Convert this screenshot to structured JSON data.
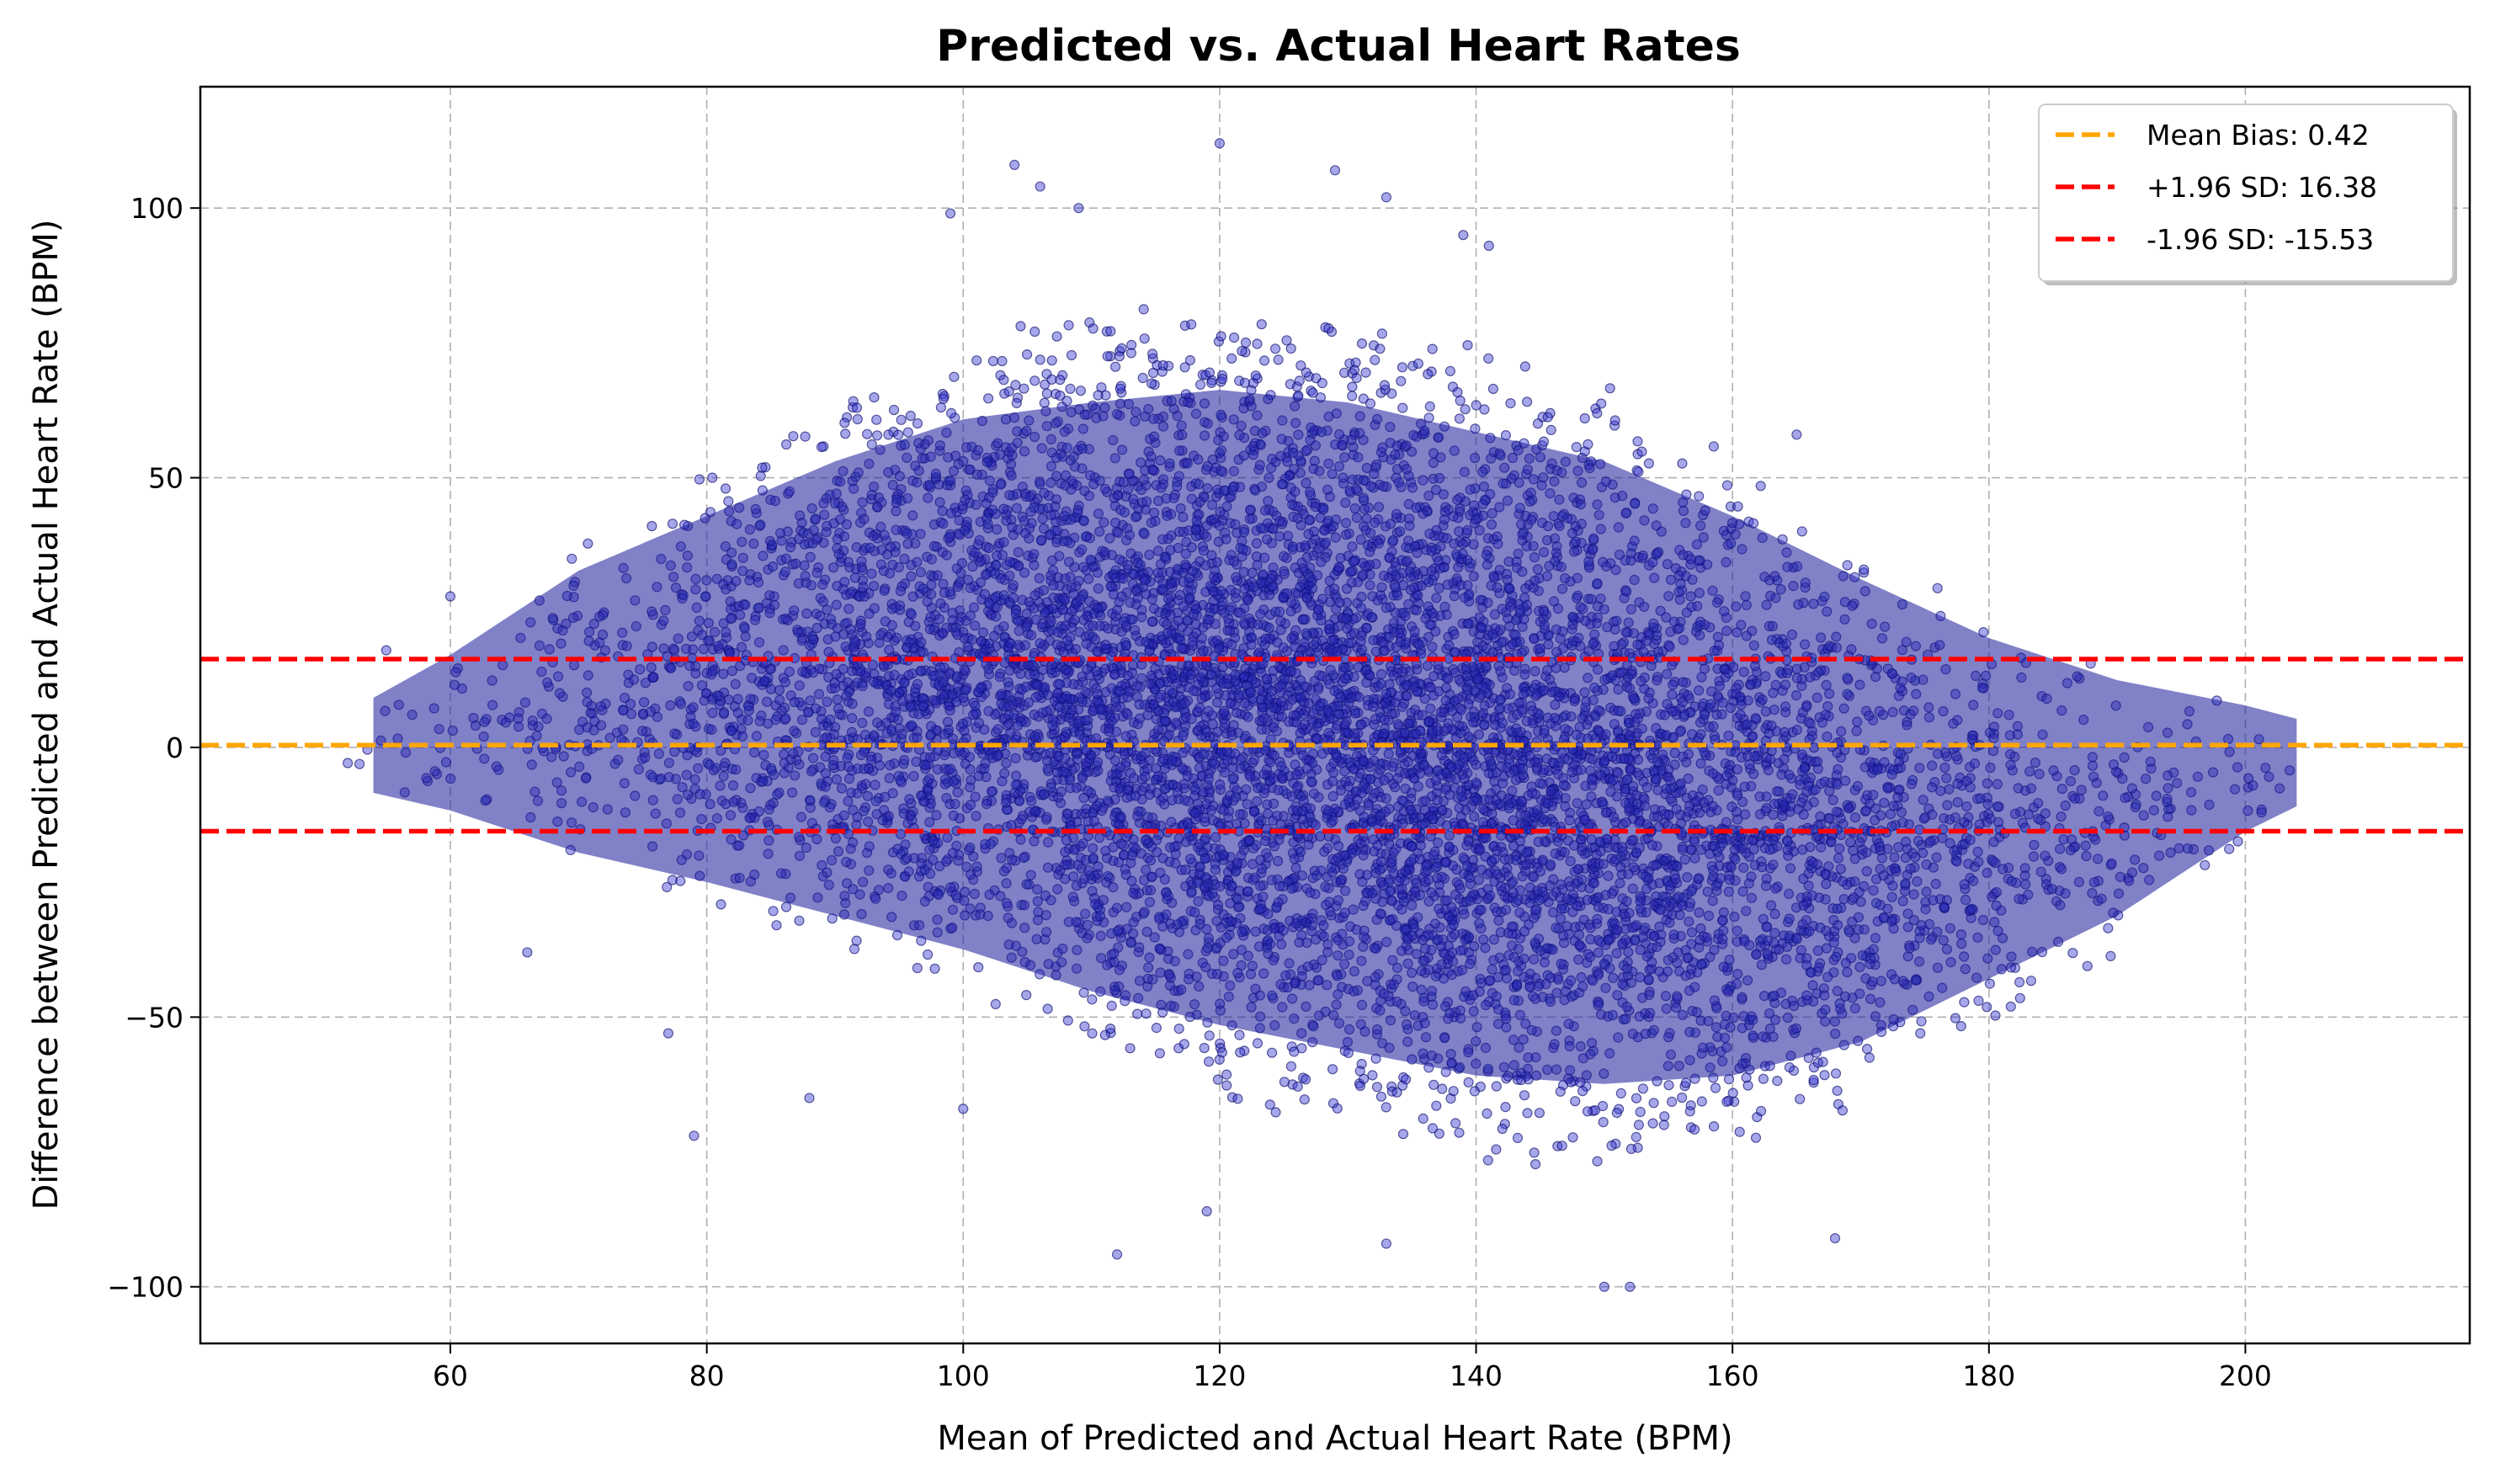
{
  "chart_data": {
    "type": "scatter",
    "title": "Predicted vs. Actual Heart Rates",
    "xlabel": "Mean of Predicted and Actual Heart Rate (BPM)",
    "ylabel": "Difference between Predicted and Actual Heart Rate (BPM)",
    "xlim": [
      40.5,
      217.5
    ],
    "ylim": [
      -110.5,
      122.5
    ],
    "xticks": [
      60,
      80,
      100,
      120,
      140,
      160,
      180,
      200
    ],
    "yticks": [
      100,
      50,
      0,
      -50,
      -100
    ],
    "ytick_labels": [
      "100",
      "50",
      "0",
      "−50",
      "−100"
    ],
    "grid": true,
    "legend_position": "top-right",
    "point_color": "#3a3ad0",
    "point_edge_color": "#000060",
    "point_opacity": 0.45,
    "scatter_distribution": {
      "x_range": [
        48,
        210
      ],
      "envelope": [
        {
          "x": 50,
          "upper": 5,
          "lower": -8
        },
        {
          "x": 60,
          "upper": 22,
          "lower": -15
        },
        {
          "x": 70,
          "upper": 42,
          "lower": -25
        },
        {
          "x": 80,
          "upper": 55,
          "lower": -32
        },
        {
          "x": 90,
          "upper": 68,
          "lower": -40
        },
        {
          "x": 100,
          "upper": 78,
          "lower": -48
        },
        {
          "x": 110,
          "upper": 82,
          "lower": -58
        },
        {
          "x": 120,
          "upper": 85,
          "lower": -66
        },
        {
          "x": 130,
          "upper": 82,
          "lower": -72
        },
        {
          "x": 140,
          "upper": 75,
          "lower": -78
        },
        {
          "x": 150,
          "upper": 68,
          "lower": -80
        },
        {
          "x": 160,
          "upper": 55,
          "lower": -78
        },
        {
          "x": 170,
          "upper": 40,
          "lower": -70
        },
        {
          "x": 180,
          "upper": 26,
          "lower": -55
        },
        {
          "x": 190,
          "upper": 16,
          "lower": -40
        },
        {
          "x": 200,
          "upper": 10,
          "lower": -20
        },
        {
          "x": 210,
          "upper": 2,
          "lower": -5
        }
      ],
      "outliers": [
        {
          "x": 104,
          "y": 108
        },
        {
          "x": 106,
          "y": 104
        },
        {
          "x": 109,
          "y": 100
        },
        {
          "x": 120,
          "y": 112
        },
        {
          "x": 129,
          "y": 107
        },
        {
          "x": 133,
          "y": 102
        },
        {
          "x": 99,
          "y": 99
        },
        {
          "x": 112,
          "y": -94
        },
        {
          "x": 133,
          "y": -92
        },
        {
          "x": 150,
          "y": -100
        },
        {
          "x": 152,
          "y": -100
        },
        {
          "x": 79,
          "y": -72
        },
        {
          "x": 77,
          "y": -53
        },
        {
          "x": 88,
          "y": -65
        },
        {
          "x": 100,
          "y": -67
        },
        {
          "x": 119,
          "y": -86
        },
        {
          "x": 165,
          "y": 58
        },
        {
          "x": 168,
          "y": -91
        },
        {
          "x": 139,
          "y": 95
        },
        {
          "x": 141,
          "y": 93
        },
        {
          "x": 55,
          "y": 18
        },
        {
          "x": 60,
          "y": 28
        },
        {
          "x": 66,
          "y": -38
        }
      ]
    },
    "series": [
      {
        "name": "Mean Bias: 0.42",
        "kind": "hline",
        "y": 0.42,
        "color": "#ffa500",
        "dash": true
      },
      {
        "name": "+1.96 SD: 16.38",
        "kind": "hline",
        "y": 16.38,
        "color": "#ff0000",
        "dash": true
      },
      {
        "name": "-1.96 SD: -15.53",
        "kind": "hline",
        "y": -15.53,
        "color": "#ff0000",
        "dash": true
      }
    ]
  }
}
